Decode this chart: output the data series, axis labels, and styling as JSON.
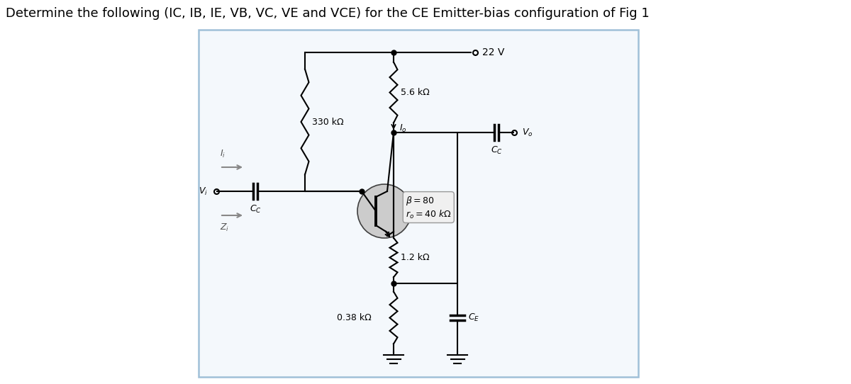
{
  "title": "Determine the following (IC, IB, IE, VB, VC, VE and VCE) for the CE Emitter-bias configuration of Fig 1",
  "title_fontsize": 13,
  "bg_color": "#ffffff",
  "box_color": "#a0c0d8",
  "box_face": "#f4f8fc",
  "wire_color": "#000000",
  "text_color": "#000000",
  "vcc_label": "22 V",
  "r1_label": "330 kΩ",
  "rc_label": "5.6 kΩ",
  "re1_label": "1.2 kΩ",
  "re2_label": "0.38 kΩ",
  "beta_label": "$\\beta = 80$\n$r_o = 40\\ k\\Omega$",
  "cc_label": "$C_C$",
  "ce_label": "$C_E$",
  "vi_label": "$V_i$",
  "vo_label": "$V_o$",
  "ii_label": "$I_i$",
  "io_label": "$I_o$",
  "zi_label": "$Z_i$"
}
